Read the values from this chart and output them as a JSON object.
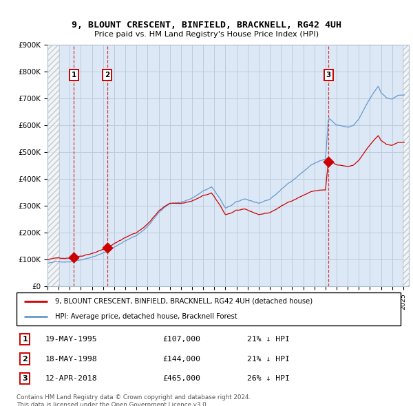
{
  "title": "9, BLOUNT CRESCENT, BINFIELD, BRACKNELL, RG42 4UH",
  "subtitle": "Price paid vs. HM Land Registry's House Price Index (HPI)",
  "ylabel_ticks": [
    "£0",
    "£100K",
    "£200K",
    "£300K",
    "£400K",
    "£500K",
    "£600K",
    "£700K",
    "£800K",
    "£900K"
  ],
  "ytick_values": [
    0,
    100000,
    200000,
    300000,
    400000,
    500000,
    600000,
    700000,
    800000,
    900000
  ],
  "xmin": 1993.0,
  "xmax": 2025.5,
  "ymin": 0,
  "ymax": 900000,
  "price_paid_years": [
    1995.37,
    1998.37,
    2018.27
  ],
  "price_paid_values": [
    107000,
    144000,
    465000
  ],
  "sale_labels": [
    "1",
    "2",
    "3"
  ],
  "sale_dates": [
    "19-MAY-1995",
    "18-MAY-1998",
    "12-APR-2018"
  ],
  "sale_prices": [
    "£107,000",
    "£144,000",
    "£465,000"
  ],
  "sale_hpi_diff": [
    "21% ↓ HPI",
    "21% ↓ HPI",
    "26% ↓ HPI"
  ],
  "red_line_color": "#cc0000",
  "blue_line_color": "#6699cc",
  "grid_color": "#bbccdd",
  "bg_color": "#dce8f5",
  "legend_label_red": "9, BLOUNT CRESCENT, BINFIELD, BRACKNELL, RG42 4UH (detached house)",
  "legend_label_blue": "HPI: Average price, detached house, Bracknell Forest",
  "footer": "Contains HM Land Registry data © Crown copyright and database right 2024.\nThis data is licensed under the Open Government Licence v3.0."
}
